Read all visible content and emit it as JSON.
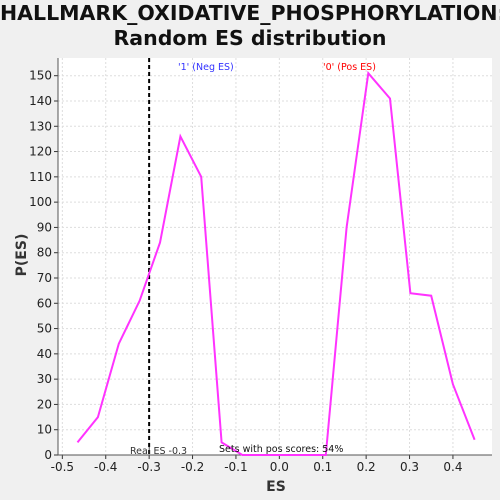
{
  "chart_data": {
    "type": "line",
    "title_line1": "HALLMARK_OXIDATIVE_PHOSPHORYLATION:",
    "title_line2": "Random ES distribution",
    "xlabel": "ES",
    "ylabel": "P(ES)",
    "xlim": [
      -0.51,
      0.49
    ],
    "ylim": [
      0,
      157
    ],
    "x_ticks": [
      "-0.5",
      "-0.4",
      "-0.3",
      "-0.2",
      "-0.1",
      "0.0",
      "0.1",
      "0.2",
      "0.3",
      "0.4"
    ],
    "y_ticks": [
      "0",
      "10",
      "20",
      "30",
      "40",
      "50",
      "60",
      "70",
      "80",
      "90",
      "100",
      "110",
      "120",
      "130",
      "140",
      "150"
    ],
    "grid": true,
    "series": [
      {
        "color": "#ff33ff",
        "x": [
          -0.465,
          -0.418,
          -0.37,
          -0.322,
          -0.275,
          -0.228,
          -0.18,
          -0.133,
          -0.085,
          -0.038,
          0.01,
          0.058,
          0.107,
          0.155,
          0.205,
          0.255,
          0.302,
          0.35,
          0.4,
          0.45
        ],
        "y": [
          5,
          15,
          44,
          61,
          84,
          126,
          110,
          5,
          0,
          0,
          0,
          0,
          0,
          90,
          151,
          141,
          64,
          63,
          28,
          6
        ]
      }
    ],
    "real_es": {
      "value": -0.3,
      "label": "Real ES -0.3"
    },
    "annotations": {
      "neg_label": "'1' (Neg ES)",
      "pos_label": "'0' (Pos ES)",
      "pos_scores": "Sets with pos scores: 54%"
    },
    "colors": {
      "neg_label": "#3333ff",
      "pos_label": "#ff0000",
      "line": "#ff33ff",
      "real_es_line": "#000000"
    }
  }
}
